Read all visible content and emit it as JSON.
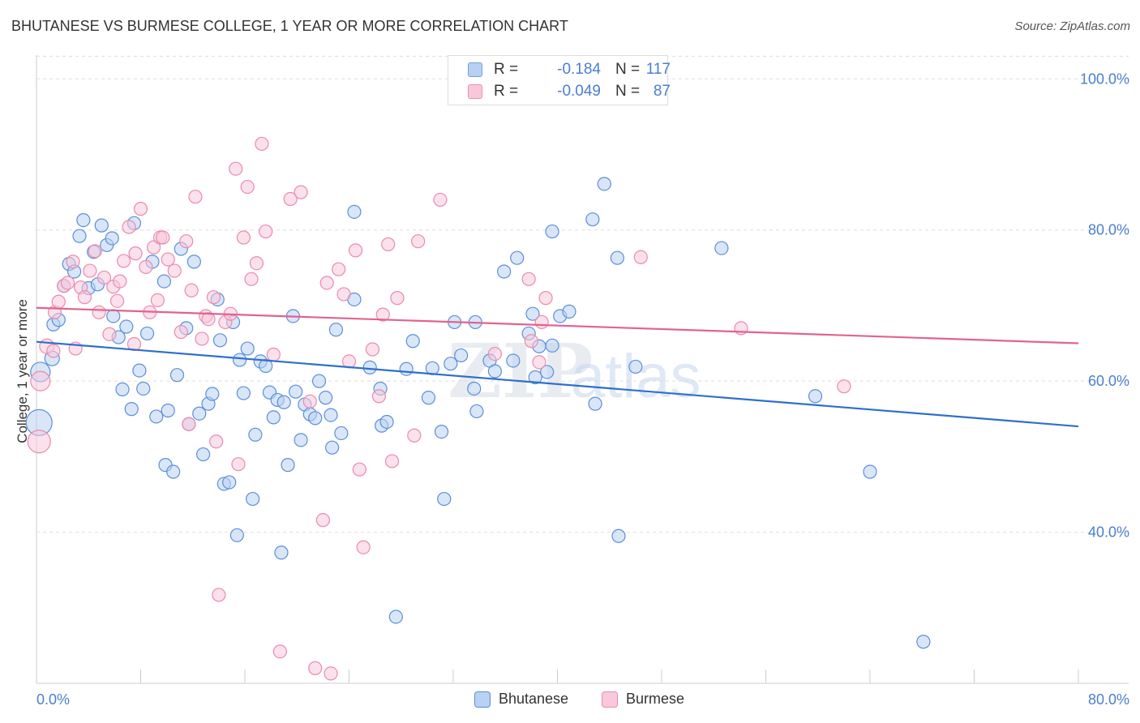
{
  "header": {
    "title": "BHUTANESE VS BURMESE COLLEGE, 1 YEAR OR MORE CORRELATION CHART",
    "source": "Source: ZipAtlas.com"
  },
  "watermark": {
    "zip": "ZIP",
    "atlas": "atlas"
  },
  "stats": [
    {
      "r_label": "R =",
      "r_value": "-0.184",
      "n_label": "N =",
      "n_value": "117",
      "color": "#6f9fe0",
      "fill": "#b8d0f3"
    },
    {
      "r_label": "R =",
      "r_value": "-0.049",
      "n_label": "N =",
      "n_value": "87",
      "color": "#ec8fb0",
      "fill": "#f8c8d8"
    }
  ],
  "colors": {
    "blue_stroke": "#5b8fd9",
    "blue_fill": "#b9d1f2",
    "blue_line": "#2f6fcc",
    "pink_stroke": "#ea8aae",
    "pink_fill": "#f8c9da",
    "pink_line": "#e3628e",
    "axis_value_text": "#4a7fcf",
    "grid": "#dddddd"
  },
  "chart_data": {
    "type": "scatter",
    "title": "BHUTANESE VS BURMESE COLLEGE, 1 YEAR OR MORE CORRELATION CHART",
    "xlabel": "",
    "ylabel": "College, 1 year or more",
    "xlim": [
      0,
      80
    ],
    "ylim": [
      20,
      104
    ],
    "x_tick_labels": [
      "0.0%",
      "80.0%"
    ],
    "y_ticks": [
      40,
      60,
      80,
      100
    ],
    "y_tick_labels": [
      "40.0%",
      "60.0%",
      "80.0%",
      "100.0%"
    ],
    "grid": true,
    "legend_position": "bottom-center",
    "series": [
      {
        "name": "Bhutanese",
        "trend": {
          "x": [
            0,
            80
          ],
          "y": [
            65.2,
            54.0
          ]
        },
        "points": [
          [
            0.2,
            54.5,
            16
          ],
          [
            0.3,
            61.2,
            12
          ],
          [
            1.2,
            63.0,
            9
          ],
          [
            1.3,
            67.5,
            8
          ],
          [
            1.7,
            68.1,
            8
          ],
          [
            2.1,
            72.6,
            8
          ],
          [
            2.5,
            75.5,
            8
          ],
          [
            2.9,
            74.5,
            8
          ],
          [
            3.3,
            79.2,
            8
          ],
          [
            3.6,
            81.3,
            8
          ],
          [
            4.0,
            72.3,
            8
          ],
          [
            4.4,
            77.1,
            8
          ],
          [
            4.7,
            72.8,
            8
          ],
          [
            5.0,
            80.6,
            8
          ],
          [
            5.4,
            78.0,
            8
          ],
          [
            5.8,
            78.9,
            8
          ],
          [
            5.9,
            68.6,
            8
          ],
          [
            6.3,
            65.8,
            8
          ],
          [
            6.6,
            58.9,
            8
          ],
          [
            6.9,
            67.2,
            8
          ],
          [
            7.3,
            56.3,
            8
          ],
          [
            7.5,
            80.9,
            8
          ],
          [
            7.9,
            61.4,
            8
          ],
          [
            8.2,
            59.0,
            8
          ],
          [
            8.5,
            66.3,
            8
          ],
          [
            8.9,
            75.8,
            8
          ],
          [
            9.2,
            55.3,
            8
          ],
          [
            9.8,
            73.2,
            8
          ],
          [
            9.9,
            48.9,
            8
          ],
          [
            10.1,
            56.1,
            8
          ],
          [
            10.5,
            48.0,
            8
          ],
          [
            10.8,
            60.8,
            8
          ],
          [
            11.1,
            77.5,
            8
          ],
          [
            11.5,
            67.0,
            8
          ],
          [
            11.7,
            54.3,
            8
          ],
          [
            12.1,
            75.8,
            8
          ],
          [
            12.5,
            55.7,
            8
          ],
          [
            12.8,
            50.3,
            8
          ],
          [
            13.2,
            57.0,
            8
          ],
          [
            13.5,
            58.3,
            8
          ],
          [
            13.9,
            70.8,
            8
          ],
          [
            14.1,
            65.4,
            8
          ],
          [
            14.4,
            46.4,
            8
          ],
          [
            14.8,
            46.6,
            8
          ],
          [
            15.1,
            67.8,
            8
          ],
          [
            15.4,
            39.6,
            8
          ],
          [
            15.6,
            62.8,
            8
          ],
          [
            15.9,
            58.4,
            8
          ],
          [
            16.2,
            64.3,
            8
          ],
          [
            16.6,
            44.4,
            8
          ],
          [
            16.8,
            52.9,
            8
          ],
          [
            17.2,
            62.6,
            8
          ],
          [
            17.6,
            62.0,
            8
          ],
          [
            17.9,
            58.5,
            8
          ],
          [
            18.2,
            55.2,
            8
          ],
          [
            18.5,
            57.5,
            8
          ],
          [
            18.8,
            37.3,
            8
          ],
          [
            19.0,
            57.2,
            8
          ],
          [
            19.3,
            48.9,
            8
          ],
          [
            19.7,
            68.6,
            8
          ],
          [
            19.9,
            58.6,
            8
          ],
          [
            20.3,
            52.2,
            8
          ],
          [
            20.6,
            56.9,
            8
          ],
          [
            21.0,
            55.6,
            8
          ],
          [
            21.4,
            55.1,
            8
          ],
          [
            21.7,
            60.0,
            8
          ],
          [
            22.2,
            57.8,
            8
          ],
          [
            22.6,
            55.5,
            8
          ],
          [
            22.7,
            51.2,
            8
          ],
          [
            23.0,
            66.8,
            8
          ],
          [
            23.4,
            53.1,
            8
          ],
          [
            24.4,
            70.8,
            8
          ],
          [
            24.4,
            82.4,
            8
          ],
          [
            25.6,
            61.8,
            8
          ],
          [
            26.4,
            59.0,
            8
          ],
          [
            26.5,
            54.1,
            8
          ],
          [
            26.9,
            54.6,
            8
          ],
          [
            27.6,
            28.8,
            8
          ],
          [
            28.4,
            61.6,
            8
          ],
          [
            28.9,
            65.3,
            8
          ],
          [
            30.1,
            57.8,
            8
          ],
          [
            30.4,
            61.7,
            8
          ],
          [
            31.1,
            53.3,
            8
          ],
          [
            31.3,
            44.4,
            8
          ],
          [
            31.8,
            62.3,
            8
          ],
          [
            32.1,
            67.8,
            8
          ],
          [
            32.6,
            63.4,
            8
          ],
          [
            33.6,
            59.0,
            8
          ],
          [
            33.7,
            67.8,
            8
          ],
          [
            33.8,
            56.0,
            8
          ],
          [
            34.8,
            62.7,
            8
          ],
          [
            35.2,
            61.3,
            8
          ],
          [
            35.9,
            74.5,
            8
          ],
          [
            36.6,
            62.7,
            8
          ],
          [
            36.9,
            76.3,
            8
          ],
          [
            37.8,
            66.3,
            8
          ],
          [
            38.1,
            68.9,
            8
          ],
          [
            38.3,
            60.5,
            8
          ],
          [
            38.6,
            64.6,
            8
          ],
          [
            39.2,
            61.2,
            8
          ],
          [
            39.6,
            64.7,
            8
          ],
          [
            39.6,
            79.8,
            8
          ],
          [
            40.2,
            68.6,
            8
          ],
          [
            40.9,
            69.2,
            8
          ],
          [
            42.7,
            81.4,
            8
          ],
          [
            42.9,
            57.0,
            8
          ],
          [
            43.6,
            86.1,
            8
          ],
          [
            44.6,
            76.3,
            8
          ],
          [
            44.7,
            39.5,
            8
          ],
          [
            46.0,
            61.9,
            8
          ],
          [
            52.6,
            77.6,
            8
          ],
          [
            59.8,
            58.0,
            8
          ],
          [
            64.0,
            48.0,
            8
          ],
          [
            68.1,
            25.5,
            8
          ]
        ]
      },
      {
        "name": "Burmese",
        "trend": {
          "x": [
            0,
            80
          ],
          "y": [
            69.7,
            65.0
          ]
        },
        "points": [
          [
            0.2,
            52.0,
            14
          ],
          [
            0.3,
            60.0,
            12
          ],
          [
            0.8,
            64.6,
            9
          ],
          [
            1.3,
            64.0,
            8
          ],
          [
            1.4,
            69.1,
            8
          ],
          [
            1.7,
            70.5,
            8
          ],
          [
            2.1,
            72.6,
            8
          ],
          [
            2.4,
            73.0,
            8
          ],
          [
            2.8,
            75.8,
            8
          ],
          [
            3.0,
            64.3,
            8
          ],
          [
            3.4,
            72.4,
            8
          ],
          [
            3.7,
            71.1,
            8
          ],
          [
            4.1,
            74.6,
            8
          ],
          [
            4.5,
            77.2,
            8
          ],
          [
            4.8,
            69.1,
            8
          ],
          [
            5.2,
            73.7,
            8
          ],
          [
            5.6,
            66.2,
            8
          ],
          [
            5.9,
            72.5,
            8
          ],
          [
            6.2,
            70.6,
            8
          ],
          [
            6.4,
            73.2,
            8
          ],
          [
            6.7,
            75.9,
            8
          ],
          [
            7.1,
            80.4,
            8
          ],
          [
            7.5,
            64.9,
            8
          ],
          [
            7.6,
            76.9,
            8
          ],
          [
            8.0,
            82.8,
            8
          ],
          [
            8.4,
            75.1,
            8
          ],
          [
            8.7,
            69.1,
            8
          ],
          [
            9.0,
            77.7,
            8
          ],
          [
            9.3,
            70.7,
            8
          ],
          [
            9.5,
            79.0,
            8
          ],
          [
            9.7,
            79.0,
            8
          ],
          [
            10.1,
            76.1,
            8
          ],
          [
            10.6,
            74.6,
            8
          ],
          [
            11.1,
            66.5,
            8
          ],
          [
            11.5,
            78.5,
            8
          ],
          [
            11.7,
            54.3,
            8
          ],
          [
            11.9,
            72.0,
            8
          ],
          [
            12.2,
            84.4,
            8
          ],
          [
            12.7,
            65.6,
            8
          ],
          [
            13.0,
            68.6,
            8
          ],
          [
            13.2,
            68.2,
            8
          ],
          [
            13.6,
            71.1,
            8
          ],
          [
            13.8,
            52.0,
            8
          ],
          [
            14.0,
            31.7,
            8
          ],
          [
            14.5,
            67.8,
            8
          ],
          [
            14.9,
            68.9,
            8
          ],
          [
            15.3,
            88.1,
            8
          ],
          [
            15.5,
            49.0,
            8
          ],
          [
            15.9,
            79.0,
            8
          ],
          [
            16.2,
            85.7,
            8
          ],
          [
            16.5,
            73.5,
            8
          ],
          [
            16.9,
            75.6,
            8
          ],
          [
            17.3,
            91.4,
            8
          ],
          [
            17.6,
            79.8,
            8
          ],
          [
            18.2,
            63.5,
            8
          ],
          [
            18.7,
            24.2,
            8
          ],
          [
            19.5,
            84.1,
            8
          ],
          [
            20.3,
            85.0,
            8
          ],
          [
            21.0,
            57.3,
            8
          ],
          [
            21.4,
            22.0,
            8
          ],
          [
            22.0,
            41.6,
            8
          ],
          [
            22.3,
            73.0,
            8
          ],
          [
            22.6,
            21.3,
            8
          ],
          [
            23.2,
            74.8,
            8
          ],
          [
            23.6,
            71.5,
            8
          ],
          [
            24.0,
            62.6,
            8
          ],
          [
            24.5,
            77.3,
            8
          ],
          [
            24.8,
            48.3,
            8
          ],
          [
            25.1,
            38.0,
            8
          ],
          [
            25.8,
            64.2,
            8
          ],
          [
            26.3,
            58.0,
            8
          ],
          [
            26.6,
            68.8,
            8
          ],
          [
            27.0,
            78.1,
            8
          ],
          [
            27.3,
            49.4,
            8
          ],
          [
            27.7,
            71.0,
            8
          ],
          [
            29.0,
            52.8,
            8
          ],
          [
            29.3,
            78.5,
            8
          ],
          [
            31.0,
            84.0,
            8
          ],
          [
            35.2,
            63.6,
            8
          ],
          [
            37.8,
            73.5,
            8
          ],
          [
            38.0,
            65.3,
            8
          ],
          [
            38.6,
            62.5,
            8
          ],
          [
            38.8,
            67.8,
            8
          ],
          [
            39.1,
            71.0,
            8
          ],
          [
            46.4,
            76.4,
            8
          ],
          [
            54.1,
            67.0,
            8
          ],
          [
            62.0,
            59.3,
            8
          ]
        ]
      }
    ]
  },
  "legend": {
    "items": [
      "Bhutanese",
      "Burmese"
    ]
  }
}
